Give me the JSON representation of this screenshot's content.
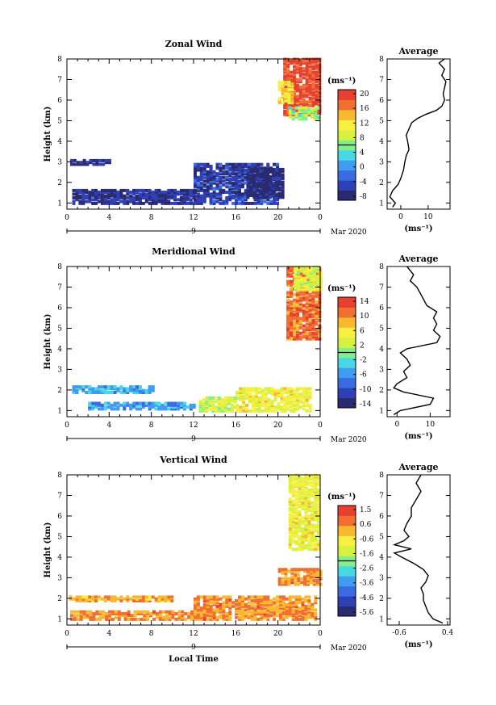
{
  "chart_data": [
    {
      "type": "heatmap",
      "title": "Zonal Wind",
      "ylabel": "Height (km)",
      "ylim": [
        0.7,
        8
      ],
      "yticks": [
        "1",
        "2",
        "3",
        "4",
        "5",
        "6",
        "7",
        "8"
      ],
      "xlim": [
        0,
        24
      ],
      "xticks": [
        "0",
        "4",
        "8",
        "12",
        "16",
        "20",
        "0"
      ],
      "date_label": "9",
      "date_suffix": "Mar 2020",
      "colorbar": {
        "unit": "(ms⁻¹)",
        "range": [
          -10,
          24
        ],
        "ticks": [
          "20",
          "16",
          "12",
          "8",
          "4",
          "0",
          "-4",
          "-8"
        ],
        "colors": [
          "#2a2a70",
          "#2f3fb5",
          "#3a6be0",
          "#3f9cf0",
          "#47d8e4",
          "#7ff08a",
          "#d8f040",
          "#f8f040",
          "#f8b830",
          "#f07030",
          "#e84030"
        ]
      },
      "side_profile": {
        "title": "Average",
        "xticks": [
          "0",
          "10"
        ],
        "xlim": [
          -5,
          18
        ],
        "xlabel": "(ms⁻¹)",
        "height": [
          0.8,
          1.0,
          1.3,
          1.6,
          1.9,
          2.2,
          2.6,
          3.0,
          3.3,
          3.6,
          4.0,
          4.3,
          4.6,
          4.9,
          5.1,
          5.3,
          5.5,
          5.7,
          6.0,
          6.3,
          6.6,
          6.9,
          7.2,
          7.5,
          7.8,
          8.0
        ],
        "value": [
          -3,
          -2,
          -4,
          -3,
          -1,
          0,
          1,
          1.5,
          2,
          3,
          2.5,
          2,
          3,
          4,
          6,
          9,
          13,
          15,
          16,
          15.5,
          16,
          16.5,
          15,
          16,
          14,
          16
        ]
      },
      "patches": [
        {
          "x": [
            20.5,
            24
          ],
          "y": [
            5.2,
            7.9
          ],
          "v": 22
        },
        {
          "x": [
            20.0,
            21.5
          ],
          "y": [
            5.8,
            6.8
          ],
          "v": 14
        },
        {
          "x": [
            21.0,
            24
          ],
          "y": [
            5.0,
            5.6
          ],
          "v": 8
        },
        {
          "x": [
            12.0,
            20.0
          ],
          "y": [
            0.9,
            2.8
          ],
          "v": -6
        },
        {
          "x": [
            17.0,
            20.5
          ],
          "y": [
            1.2,
            2.6
          ],
          "v": -9
        },
        {
          "x": [
            0.5,
            12.0
          ],
          "y": [
            0.9,
            1.6
          ],
          "v": -7
        },
        {
          "x": [
            0.3,
            4.0
          ],
          "y": [
            2.8,
            3.0
          ],
          "v": -7
        }
      ]
    },
    {
      "type": "heatmap",
      "title": "Meridional Wind",
      "ylabel": "Height (km)",
      "ylim": [
        0.7,
        8
      ],
      "yticks": [
        "1",
        "2",
        "3",
        "4",
        "5",
        "6",
        "7",
        "8"
      ],
      "xlim": [
        0,
        24
      ],
      "xticks": [
        "0",
        "4",
        "8",
        "12",
        "16",
        "20",
        "0"
      ],
      "date_label": "9",
      "date_suffix": "Mar 2020",
      "colorbar": {
        "unit": "(ms⁻¹)",
        "range": [
          -16,
          16
        ],
        "ticks": [
          "14",
          "10",
          "6",
          "2",
          "-2",
          "-6",
          "-10",
          "-14"
        ],
        "colors": [
          "#2a2a70",
          "#2f3fb5",
          "#3a6be0",
          "#3f9cf0",
          "#47d8e4",
          "#7ff08a",
          "#d8f040",
          "#f8f040",
          "#f8b830",
          "#f07030",
          "#e84030"
        ]
      },
      "side_profile": {
        "title": "Average",
        "xticks": [
          "0",
          "10"
        ],
        "xlim": [
          -3,
          16
        ],
        "xlabel": "(ms⁻¹)",
        "height": [
          0.8,
          1.0,
          1.3,
          1.6,
          1.9,
          2.1,
          2.3,
          2.6,
          2.9,
          3.2,
          3.5,
          3.8,
          4.0,
          4.3,
          4.6,
          4.9,
          5.2,
          5.5,
          5.8,
          6.1,
          6.4,
          6.7,
          7.0,
          7.3,
          7.6,
          8.0
        ],
        "value": [
          -1,
          1,
          10,
          11,
          2,
          -1,
          0,
          3,
          2,
          4,
          3,
          1,
          3,
          12,
          13,
          11,
          12,
          11,
          12,
          9,
          8,
          7,
          6,
          4,
          5,
          3
        ]
      },
      "patches": [
        {
          "x": [
            20.8,
            24
          ],
          "y": [
            4.4,
            7.9
          ],
          "v": 12
        },
        {
          "x": [
            21.5,
            24
          ],
          "y": [
            6.8,
            7.9
          ],
          "v": 4
        },
        {
          "x": [
            16.0,
            23.0
          ],
          "y": [
            0.9,
            2.0
          ],
          "v": 5
        },
        {
          "x": [
            12.5,
            16.0
          ],
          "y": [
            0.9,
            1.6
          ],
          "v": 3
        },
        {
          "x": [
            2.0,
            12.0
          ],
          "y": [
            1.0,
            1.3
          ],
          "v": -6
        },
        {
          "x": [
            0.5,
            8.0
          ],
          "y": [
            1.8,
            2.1
          ],
          "v": -5
        }
      ]
    },
    {
      "type": "heatmap",
      "title": "Vertical Wind",
      "ylabel": "Height (km)",
      "xlabel": "Local Time",
      "ylim": [
        0.7,
        8
      ],
      "yticks": [
        "1",
        "2",
        "3",
        "4",
        "5",
        "6",
        "7",
        "8"
      ],
      "xlim": [
        0,
        24
      ],
      "xticks": [
        "0",
        "4",
        "8",
        "12",
        "16",
        "20",
        "0"
      ],
      "date_label": "9",
      "date_suffix": "Mar 2020",
      "colorbar": {
        "unit": "(ms⁻¹)",
        "range": [
          -6,
          2
        ],
        "ticks": [
          "1.5",
          "0.6",
          "-0.6",
          "-1.6",
          "-2.6",
          "-3.6",
          "-4.6",
          "-5.6"
        ],
        "colors": [
          "#2a2a70",
          "#2f3fb5",
          "#3a6be0",
          "#3f9cf0",
          "#47d8e4",
          "#7ff08a",
          "#d8f040",
          "#f8f040",
          "#f8b830",
          "#f07030",
          "#e84030"
        ]
      },
      "side_profile": {
        "title": "Average",
        "xticks": [
          "-0.6",
          "0.4"
        ],
        "xlim": [
          -0.85,
          0.45
        ],
        "xlabel": "(ms⁻¹)",
        "height": [
          0.8,
          1.0,
          1.3,
          1.6,
          1.9,
          2.2,
          2.5,
          2.8,
          3.1,
          3.4,
          3.7,
          4.0,
          4.2,
          4.4,
          4.6,
          4.8,
          5.0,
          5.3,
          5.6,
          6.0,
          6.4,
          6.8,
          7.2,
          7.6,
          8.0
        ],
        "value": [
          0.3,
          0.1,
          0.0,
          -0.05,
          -0.1,
          -0.1,
          -0.15,
          -0.05,
          0.0,
          -0.1,
          -0.3,
          -0.55,
          -0.7,
          -0.35,
          -0.7,
          -0.5,
          -0.4,
          -0.5,
          -0.45,
          -0.35,
          -0.35,
          -0.25,
          -0.15,
          -0.25,
          -0.15
        ]
      },
      "patches": [
        {
          "x": [
            21.0,
            24
          ],
          "y": [
            4.3,
            7.9
          ],
          "v": -0.8
        },
        {
          "x": [
            12.0,
            23.5
          ],
          "y": [
            0.9,
            2.0
          ],
          "v": 0.6
        },
        {
          "x": [
            0.3,
            12.0
          ],
          "y": [
            0.9,
            1.3
          ],
          "v": 0.6
        },
        {
          "x": [
            0.2,
            10.0
          ],
          "y": [
            1.8,
            2.0
          ],
          "v": 0.3
        },
        {
          "x": [
            20.0,
            24
          ],
          "y": [
            2.6,
            3.4
          ],
          "v": 0.6
        }
      ]
    }
  ]
}
